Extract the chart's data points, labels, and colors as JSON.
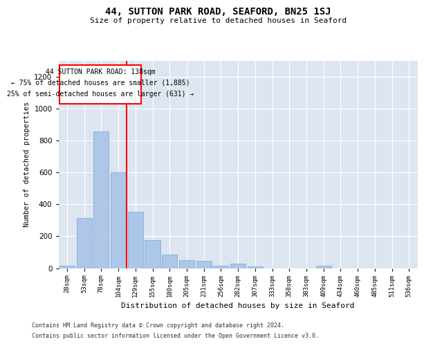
{
  "title": "44, SUTTON PARK ROAD, SEAFORD, BN25 1SJ",
  "subtitle": "Size of property relative to detached houses in Seaford",
  "xlabel": "Distribution of detached houses by size in Seaford",
  "ylabel": "Number of detached properties",
  "bar_color": "#aec6e8",
  "bar_edge_color": "#7bafd4",
  "background_color": "#dde5f0",
  "categories": [
    "28sqm",
    "53sqm",
    "78sqm",
    "104sqm",
    "129sqm",
    "155sqm",
    "180sqm",
    "205sqm",
    "231sqm",
    "256sqm",
    "282sqm",
    "307sqm",
    "333sqm",
    "358sqm",
    "383sqm",
    "409sqm",
    "434sqm",
    "460sqm",
    "485sqm",
    "511sqm",
    "536sqm"
  ],
  "values": [
    15,
    315,
    855,
    600,
    355,
    175,
    85,
    50,
    45,
    15,
    30,
    10,
    0,
    0,
    0,
    15,
    0,
    0,
    0,
    0,
    0
  ],
  "ylim": [
    0,
    1300
  ],
  "yticks": [
    0,
    200,
    400,
    600,
    800,
    1000,
    1200
  ],
  "property_line_x": 3.5,
  "annotation_title": "44 SUTTON PARK ROAD: 138sqm",
  "annotation_line1": "← 75% of detached houses are smaller (1,885)",
  "annotation_line2": "25% of semi-detached houses are larger (631) →",
  "footer1": "Contains HM Land Registry data © Crown copyright and database right 2024.",
  "footer2": "Contains public sector information licensed under the Open Government Licence v3.0."
}
